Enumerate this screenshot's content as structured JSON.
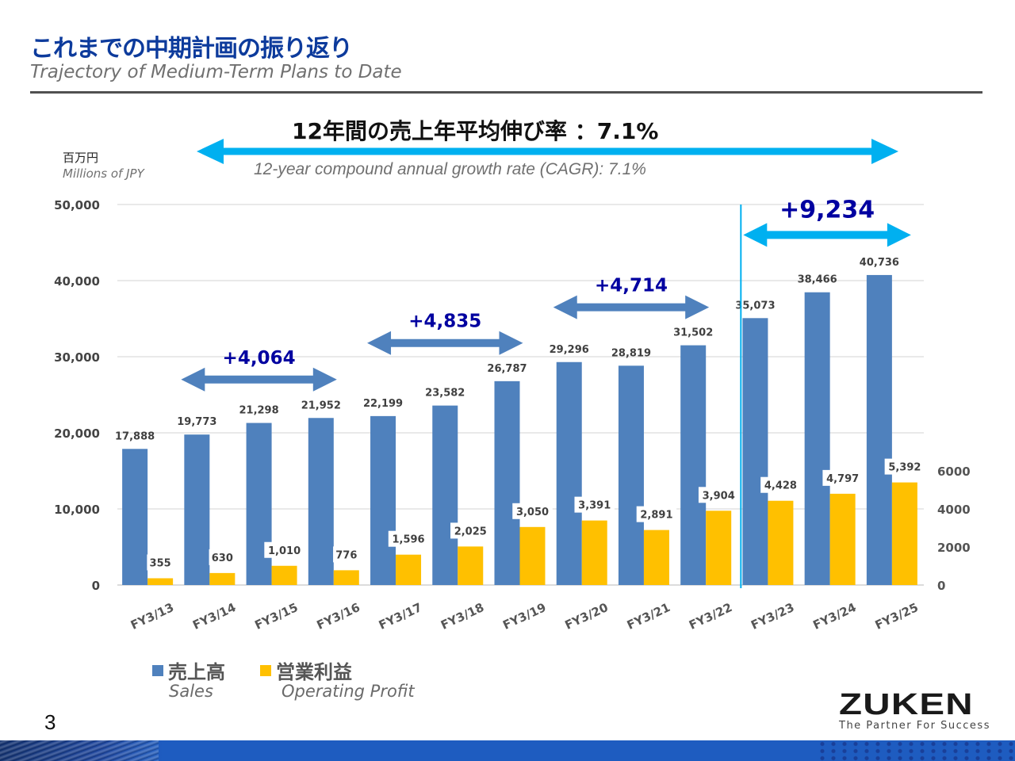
{
  "header": {
    "title_ja": "これまでの中期計画の振り返り",
    "title_en": "Trajectory of Medium-Term Plans to Date"
  },
  "unit": {
    "ja": "百万円",
    "en": "Millions of JPY"
  },
  "cagr": {
    "ja": "12年間の売上年平均伸び率 ：7.1%",
    "en": "12-year compound annual growth rate (CAGR): 7.1%",
    "value_percent": 7.1,
    "span": [
      "FY3/13",
      "FY3/25"
    ]
  },
  "legend": {
    "sales_ja": "売上高",
    "sales_en": "Sales",
    "profit_ja": "営業利益",
    "profit_en": "Operating Profit"
  },
  "page_number": "3",
  "logo": {
    "name": "ZUKEN",
    "tagline": "The Partner For Success"
  },
  "colors": {
    "sales": "#4f81bd",
    "profit": "#ffc000",
    "title": "#0d3b9c",
    "plan_arrow": "#4f81bd",
    "cagr_arrow": "#00b0f0",
    "delta_text": "#0000a0"
  },
  "chart_data": {
    "type": "bar",
    "title": "",
    "xlabel": "",
    "ylabel": "Millions of JPY",
    "categories": [
      "FY3/13",
      "FY3/14",
      "FY3/15",
      "FY3/16",
      "FY3/17",
      "FY3/18",
      "FY3/19",
      "FY3/20",
      "FY3/21",
      "FY3/22",
      "FY3/23",
      "FY3/24",
      "FY3/25"
    ],
    "series": [
      {
        "name": "Sales",
        "name_ja": "売上高",
        "axis": "left",
        "values": [
          17888,
          19773,
          21298,
          21952,
          22199,
          23582,
          26787,
          29296,
          28819,
          31502,
          35073,
          38466,
          40736
        ],
        "labels": [
          "17,888",
          "19,773",
          "21,298",
          "21,952",
          "22,199",
          "23,582",
          "26,787",
          "29,296",
          "28,819",
          "31,502",
          "35,073",
          "38,466",
          "40,736"
        ]
      },
      {
        "name": "Operating Profit",
        "name_ja": "営業利益",
        "axis": "right",
        "values": [
          355,
          630,
          1010,
          776,
          1596,
          2025,
          3050,
          3391,
          2891,
          3904,
          4428,
          4797,
          5392
        ],
        "labels": [
          "355",
          "630",
          "1,010",
          "776",
          "1,596",
          "2,025",
          "3,050",
          "3,391",
          "2,891",
          "3,904",
          "4,428",
          "4,797",
          "5,392"
        ]
      }
    ],
    "ylim": [
      0,
      50000
    ],
    "y_ticks": [
      0,
      10000,
      20000,
      30000,
      40000,
      50000
    ],
    "y_tick_labels": [
      "0",
      "10,000",
      "20,000",
      "30,000",
      "40,000",
      "50,000"
    ],
    "y2lim": [
      0,
      20000
    ],
    "y2_ticks": [
      0,
      2000,
      4000,
      6000
    ],
    "y2_tick_labels": [
      "0",
      "2000",
      "4000",
      "6000"
    ],
    "grid": true,
    "legend_position": "bottom-left",
    "divider_after": "FY3/22",
    "annotations": [
      {
        "label": "+4,064",
        "from": "FY3/14",
        "to": "FY3/16",
        "level": 27000,
        "style": "plan"
      },
      {
        "label": "+4,835",
        "from": "FY3/17",
        "to": "FY3/19",
        "level": 31800,
        "style": "plan"
      },
      {
        "label": "+4,714",
        "from": "FY3/20",
        "to": "FY3/22",
        "level": 36500,
        "style": "plan"
      },
      {
        "label": "+9,234",
        "from": "FY3/23",
        "to": "FY3/25",
        "level": 46000,
        "style": "current"
      }
    ]
  }
}
